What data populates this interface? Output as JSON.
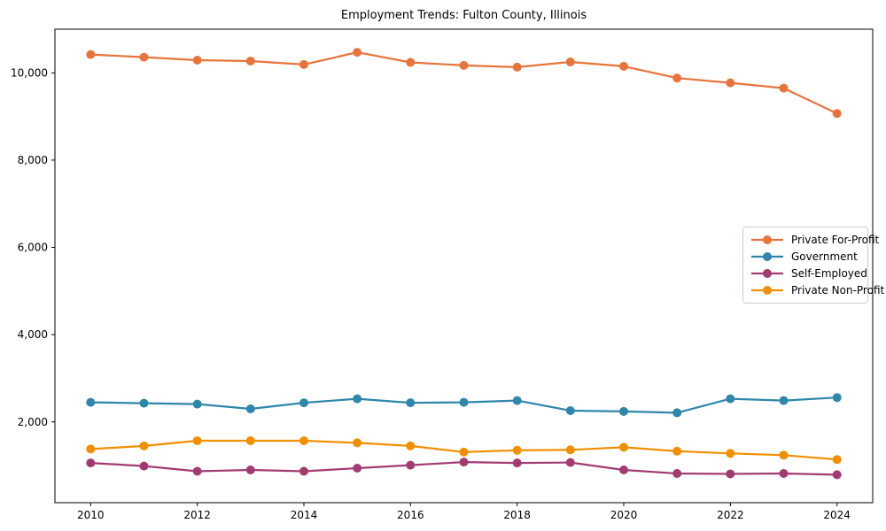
{
  "figure": {
    "background": "#ffffff"
  },
  "chart_data": {
    "type": "line",
    "title": "Employment Trends: Fulton County, Illinois",
    "xlabel": "",
    "ylabel": "",
    "grid": false,
    "legend_position": "center right",
    "marker": "circle",
    "x": [
      2010,
      2011,
      2012,
      2013,
      2014,
      2015,
      2016,
      2017,
      2018,
      2019,
      2020,
      2021,
      2022,
      2023,
      2024
    ],
    "series": [
      {
        "name": "Private For-Profit",
        "color": "#E8743B",
        "values": [
          10420,
          10360,
          10290,
          10270,
          10190,
          10470,
          10240,
          10170,
          10130,
          10250,
          10150,
          9880,
          9770,
          9650,
          9070
        ]
      },
      {
        "name": "Government",
        "color": "#2E86AB",
        "values": [
          2450,
          2430,
          2410,
          2300,
          2440,
          2530,
          2440,
          2450,
          2490,
          2260,
          2240,
          2210,
          2530,
          2490,
          2560
        ]
      },
      {
        "name": "Self-Employed",
        "color": "#A23B72",
        "values": [
          1060,
          990,
          870,
          900,
          870,
          940,
          1010,
          1080,
          1060,
          1070,
          900,
          820,
          810,
          820,
          790
        ]
      },
      {
        "name": "Private Non-Profit",
        "color": "#F18F01",
        "values": [
          1380,
          1450,
          1570,
          1570,
          1570,
          1520,
          1450,
          1310,
          1350,
          1360,
          1420,
          1330,
          1280,
          1240,
          1140
        ]
      }
    ],
    "xlim": [
      2009.33,
      2024.67
    ],
    "ylim": [
      150,
      11000
    ],
    "x_ticks": [
      2010,
      2012,
      2014,
      2016,
      2018,
      2020,
      2022,
      2024
    ],
    "x_tick_labels": [
      "2010",
      "2012",
      "2014",
      "2016",
      "2018",
      "2020",
      "2022",
      "2024"
    ],
    "y_ticks": [
      2000,
      4000,
      6000,
      8000,
      10000
    ],
    "y_tick_labels": [
      "2,000",
      "4,000",
      "6,000",
      "8,000",
      "10,000"
    ]
  }
}
